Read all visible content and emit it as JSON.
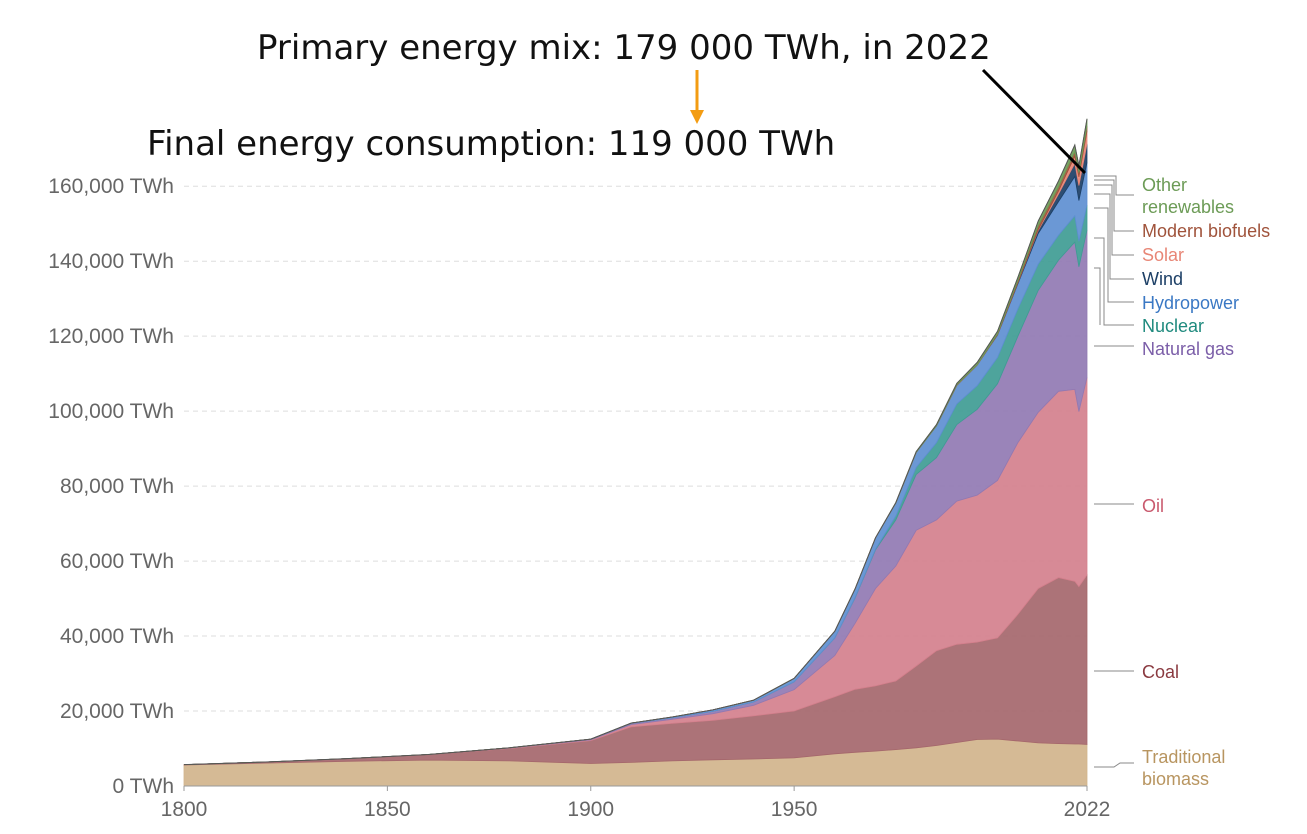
{
  "annotations": {
    "primary": "Primary energy mix: 179 000 TWh, in 2022",
    "final": "Final energy consumption: 119 000 TWh"
  },
  "colors": {
    "arrow": "#f39c12",
    "pointer": "#000000",
    "grid": "#dddddd"
  },
  "chart_data": {
    "type": "area",
    "stacked": true,
    "title": "",
    "xlabel": "",
    "ylabel": "",
    "xlim": [
      1800,
      2022
    ],
    "ylim": [
      0,
      175000
    ],
    "y_ticks": [
      0,
      20000,
      40000,
      60000,
      80000,
      100000,
      120000,
      140000,
      160000
    ],
    "y_tick_labels": [
      "0 TWh",
      "20,000 TWh",
      "40,000 TWh",
      "60,000 TWh",
      "80,000 TWh",
      "100,000 TWh",
      "120,000 TWh",
      "140,000 TWh",
      "160,000 TWh"
    ],
    "x_ticks": [
      1800,
      1850,
      1900,
      1950,
      2022
    ],
    "x_tick_labels": [
      "1800",
      "1850",
      "1900",
      "1950",
      "2022"
    ],
    "grid": "horizontal-dashed",
    "legend": "right-side-labels",
    "x": [
      1800,
      1820,
      1840,
      1860,
      1880,
      1900,
      1910,
      1920,
      1930,
      1940,
      1950,
      1960,
      1965,
      1970,
      1975,
      1980,
      1985,
      1990,
      1995,
      2000,
      2005,
      2010,
      2015,
      2019,
      2020,
      2022
    ],
    "series": [
      {
        "name": "Traditional biomass",
        "color": "#d1b48c",
        "values": [
          5600,
          6100,
          6600,
          6900,
          6700,
          6000,
          6300,
          6700,
          7000,
          7200,
          7500,
          8600,
          9000,
          9300,
          9700,
          10200,
          10800,
          11600,
          12400,
          12500,
          12000,
          11500,
          11300,
          11200,
          11200,
          11100
        ]
      },
      {
        "name": "Coal",
        "color": "#a5676c",
        "values": [
          100,
          300,
          700,
          1500,
          3300,
          6100,
          9500,
          10000,
          10500,
          11500,
          12500,
          15200,
          16800,
          17400,
          18300,
          21800,
          25300,
          26200,
          26000,
          27000,
          33800,
          41200,
          44300,
          43400,
          42000,
          45200
        ]
      },
      {
        "name": "Oil",
        "color": "#d4808d",
        "values": [
          0,
          0,
          0,
          0,
          100,
          200,
          600,
          1100,
          1800,
          2800,
          5700,
          11000,
          17600,
          26000,
          30700,
          36200,
          34900,
          38200,
          39200,
          42000,
          45800,
          47000,
          49700,
          51200,
          46700,
          52700
        ]
      },
      {
        "name": "Natural gas",
        "color": "#9179b3",
        "values": [
          0,
          0,
          0,
          0,
          100,
          200,
          300,
          400,
          600,
          900,
          2100,
          4700,
          6800,
          10300,
          12300,
          14900,
          16600,
          20400,
          22900,
          25800,
          28400,
          32500,
          35000,
          39300,
          38600,
          39300
        ]
      },
      {
        "name": "Nuclear",
        "color": "#3f9c94",
        "values": [
          0,
          0,
          0,
          0,
          0,
          0,
          0,
          0,
          0,
          0,
          0,
          0,
          100,
          200,
          1000,
          1900,
          4000,
          5500,
          6300,
          7000,
          7300,
          7000,
          6600,
          7000,
          6800,
          6700
        ]
      },
      {
        "name": "Hydropower",
        "color": "#5e8fd1",
        "values": [
          0,
          0,
          0,
          0,
          0,
          0,
          100,
          200,
          400,
          500,
          900,
          1800,
          2300,
          3000,
          3500,
          4000,
          4500,
          5000,
          5500,
          6000,
          6700,
          8200,
          9000,
          10500,
          10900,
          11300
        ]
      },
      {
        "name": "Wind",
        "color": "#1c3f66",
        "values": [
          0,
          0,
          0,
          0,
          0,
          0,
          0,
          0,
          0,
          0,
          0,
          0,
          0,
          0,
          0,
          0,
          0,
          0,
          0,
          100,
          300,
          800,
          2000,
          3500,
          4000,
          5000
        ]
      },
      {
        "name": "Solar",
        "color": "#e88676",
        "values": [
          0,
          0,
          0,
          0,
          0,
          0,
          0,
          0,
          0,
          0,
          0,
          0,
          0,
          0,
          0,
          0,
          0,
          0,
          0,
          0,
          0,
          200,
          800,
          1900,
          2300,
          3400
        ]
      },
      {
        "name": "Modern biofuels",
        "color": "#a0533b",
        "values": [
          0,
          0,
          0,
          0,
          0,
          0,
          0,
          0,
          0,
          0,
          0,
          0,
          0,
          0,
          0,
          0,
          0,
          100,
          100,
          200,
          500,
          1000,
          1100,
          1200,
          1100,
          1300
        ]
      },
      {
        "name": "Other renewables",
        "color": "#6c9b56",
        "values": [
          0,
          0,
          0,
          0,
          0,
          0,
          0,
          0,
          0,
          0,
          0,
          0,
          0,
          0,
          100,
          200,
          300,
          400,
          600,
          700,
          900,
          1300,
          1600,
          1800,
          1900,
          2000
        ]
      }
    ]
  },
  "series_labels": [
    {
      "text": "Other",
      "color": "#6c9b56"
    },
    {
      "text": "renewables",
      "color": "#6c9b56"
    },
    {
      "text": "Modern biofuels",
      "color": "#a0533b"
    },
    {
      "text": "Solar",
      "color": "#e88676"
    },
    {
      "text": "Wind",
      "color": "#1c3f66"
    },
    {
      "text": "Hydropower",
      "color": "#3a78c4"
    },
    {
      "text": "Nuclear",
      "color": "#1f8a7e"
    },
    {
      "text": "Natural gas",
      "color": "#7b5ea8"
    },
    {
      "text": "Oil",
      "color": "#c95a6e"
    },
    {
      "text": "Coal",
      "color": "#8a3a40"
    },
    {
      "text": "Traditional",
      "color": "#b89560"
    },
    {
      "text": "biomass",
      "color": "#b89560"
    }
  ]
}
